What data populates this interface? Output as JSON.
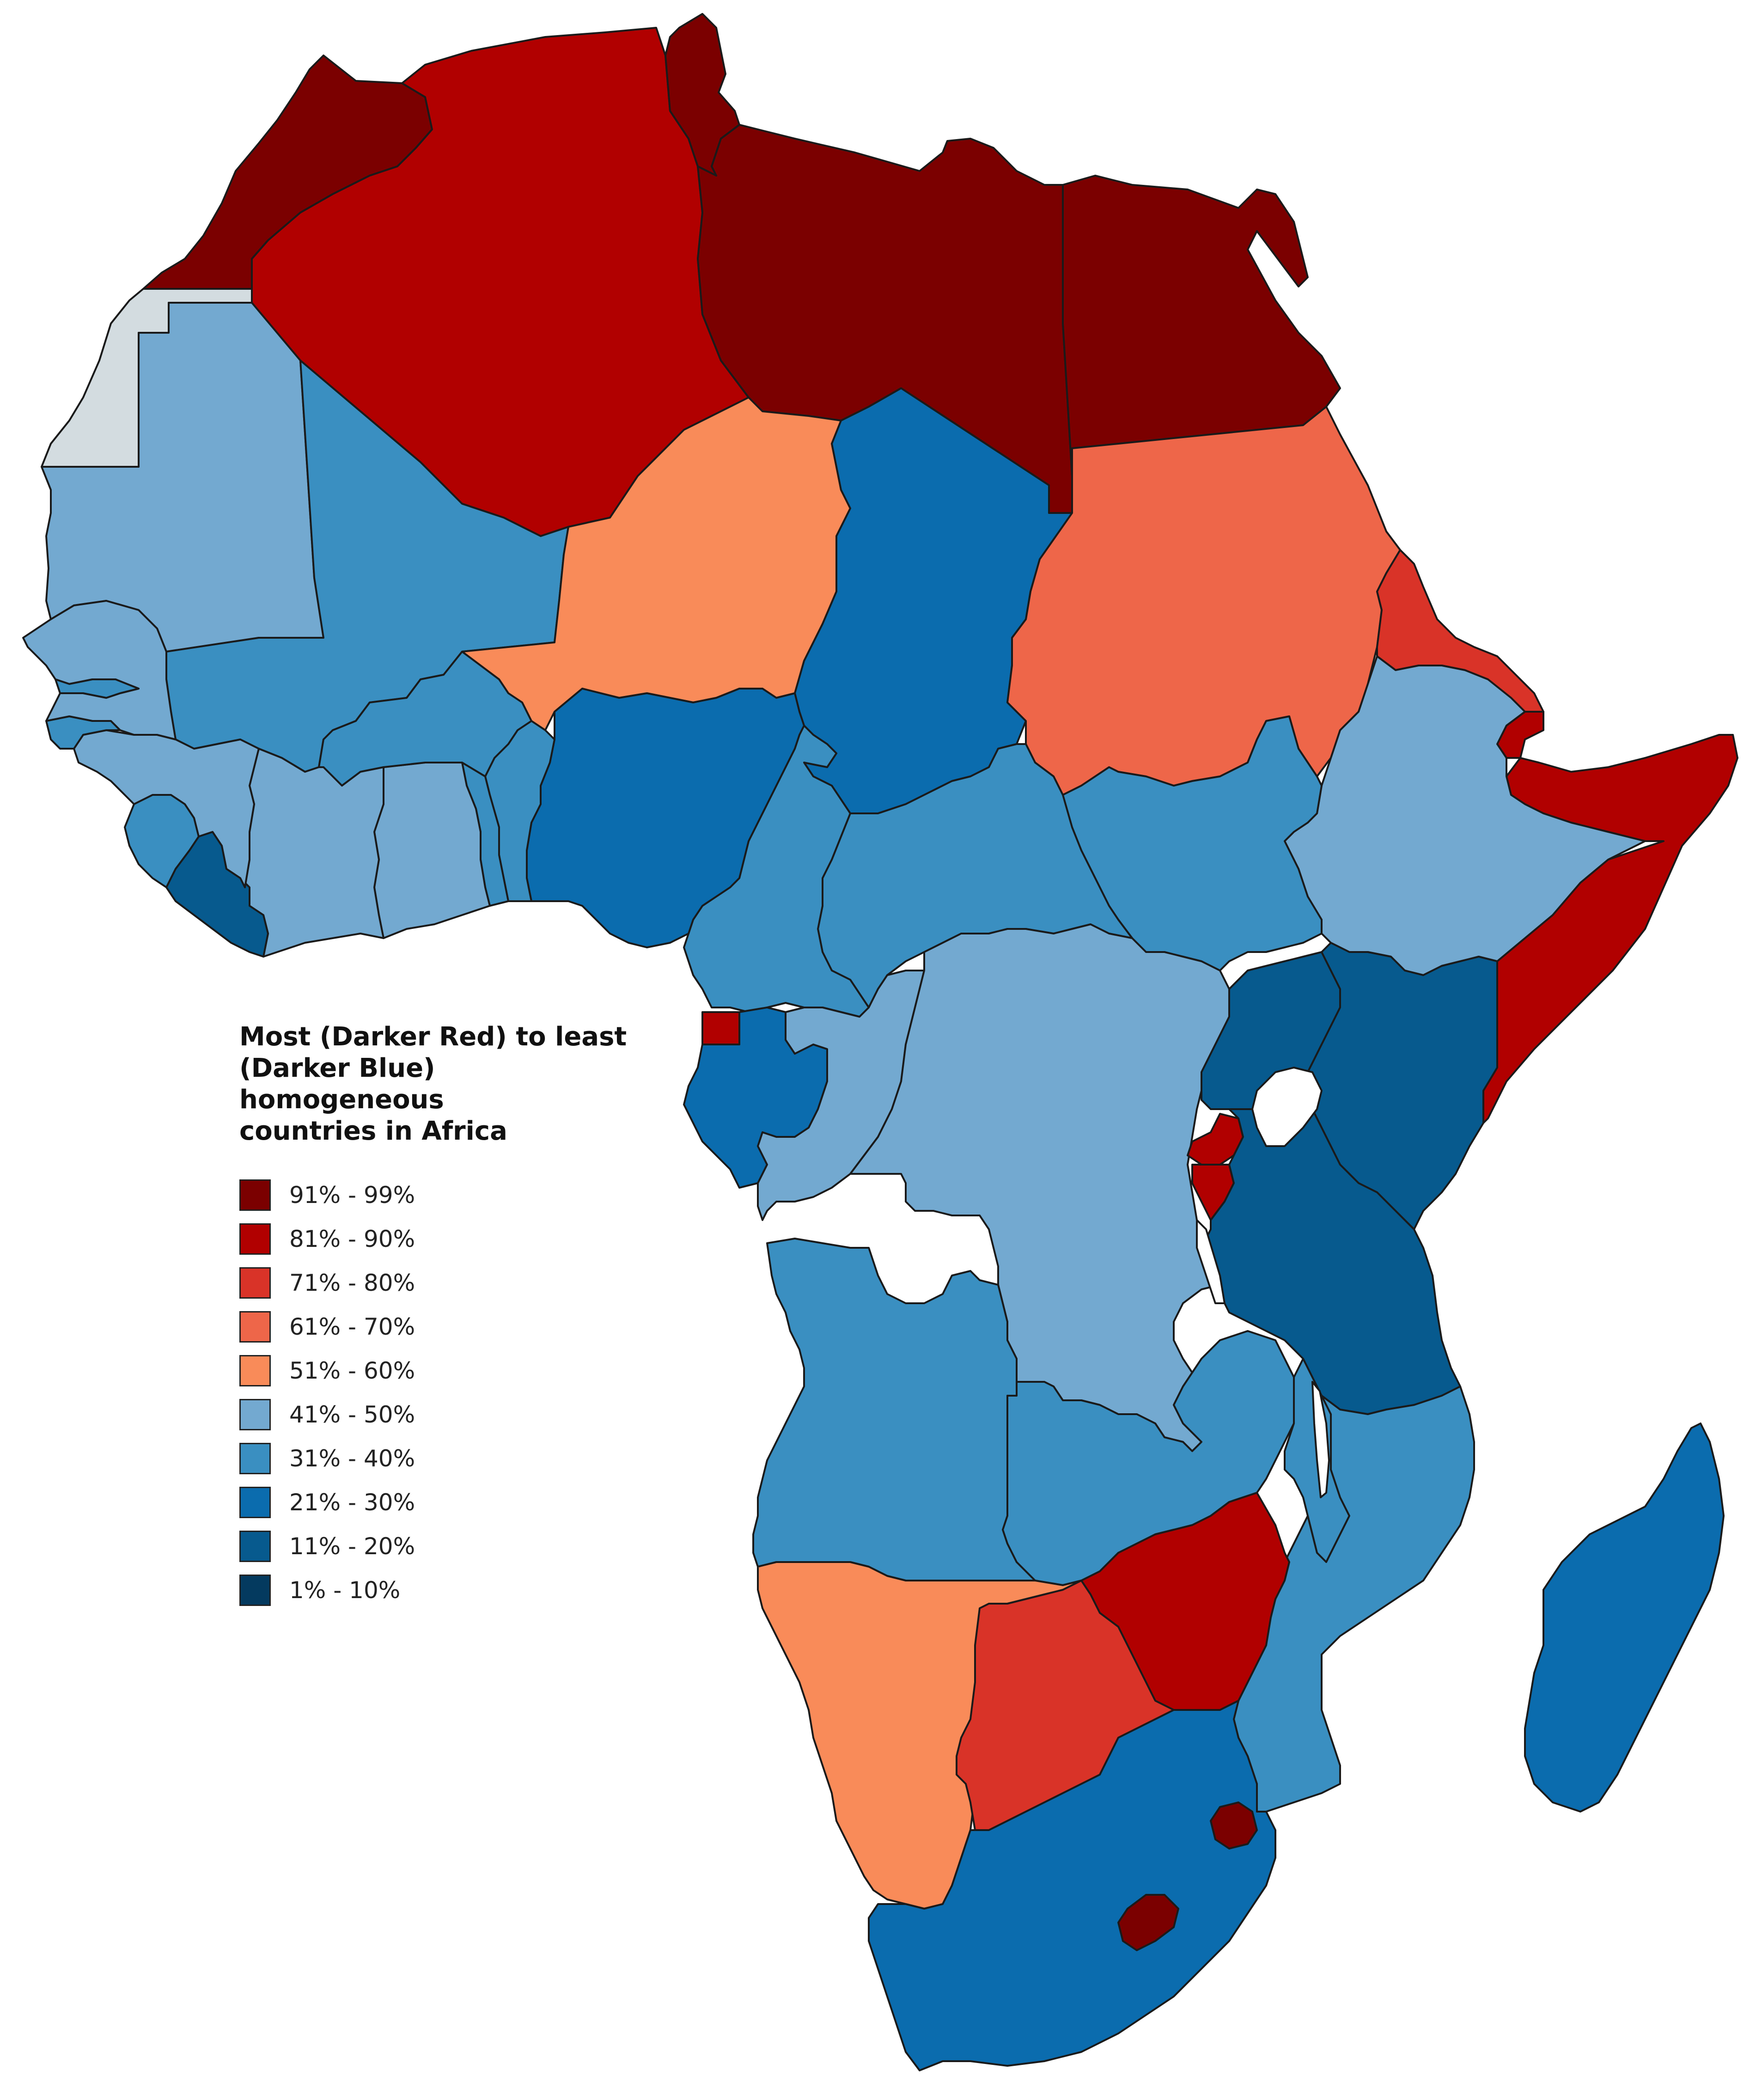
{
  "legend": {
    "title_line1": "Most (Darker Red) to least",
    "title_line2": "(Darker Blue) homogeneous",
    "title_line3": "countries in Africa",
    "items": [
      {
        "label": "91% - 99%",
        "color": "#7b0000"
      },
      {
        "label": "81% - 90%",
        "color": "#b10000"
      },
      {
        "label": "71% - 80%",
        "color": "#d93328"
      },
      {
        "label": "61% - 70%",
        "color": "#ee6649"
      },
      {
        "label": "51% - 60%",
        "color": "#f98b59"
      },
      {
        "label": "41% - 50%",
        "color": "#73a9d0"
      },
      {
        "label": "31% - 40%",
        "color": "#3a8fc1"
      },
      {
        "label": "21% - 30%",
        "color": "#0b6cae"
      },
      {
        "label": "11% - 20%",
        "color": "#075a8e"
      },
      {
        "label": "1% - 10%",
        "color": "#043a5f"
      }
    ]
  },
  "no_data_color": "#d3dce0",
  "regions": [
    {
      "id": "morocco",
      "class": "91% - 99%"
    },
    {
      "id": "algeria",
      "class": "81% - 90%"
    },
    {
      "id": "tunisia",
      "class": "91% - 99%"
    },
    {
      "id": "libya",
      "class": "91% - 99%"
    },
    {
      "id": "egypt",
      "class": "91% - 99%"
    },
    {
      "id": "western-sahara",
      "class": "none"
    },
    {
      "id": "mauritania",
      "class": "41% - 50%"
    },
    {
      "id": "mali",
      "class": "31% - 40%"
    },
    {
      "id": "niger",
      "class": "51% - 60%"
    },
    {
      "id": "chad",
      "class": "21% - 30%"
    },
    {
      "id": "sudan",
      "class": "61% - 70%"
    },
    {
      "id": "eritrea",
      "class": "71% - 80%"
    },
    {
      "id": "djibouti",
      "class": "81% - 90%"
    },
    {
      "id": "somalia",
      "class": "81% - 90%"
    },
    {
      "id": "ethiopia",
      "class": "41% - 50%"
    },
    {
      "id": "south-sudan",
      "class": "31% - 40%"
    },
    {
      "id": "central-african-republic",
      "class": "31% - 40%"
    },
    {
      "id": "cameroon",
      "class": "31% - 40%"
    },
    {
      "id": "nigeria",
      "class": "21% - 30%"
    },
    {
      "id": "benin",
      "class": "31% - 40%"
    },
    {
      "id": "togo",
      "class": "31% - 40%"
    },
    {
      "id": "ghana",
      "class": "41% - 50%"
    },
    {
      "id": "burkina-faso",
      "class": "31% - 40%"
    },
    {
      "id": "ivory-coast",
      "class": "41% - 50%"
    },
    {
      "id": "liberia",
      "class": "11% - 20%"
    },
    {
      "id": "sierra-leone",
      "class": "31% - 40%"
    },
    {
      "id": "guinea",
      "class": "41% - 50%"
    },
    {
      "id": "guinea-bissau",
      "class": "31% - 40%"
    },
    {
      "id": "senegal",
      "class": "41% - 50%"
    },
    {
      "id": "gambia",
      "class": "31% - 40%"
    },
    {
      "id": "equatorial-guinea",
      "class": "81% - 90%"
    },
    {
      "id": "gabon",
      "class": "21% - 30%"
    },
    {
      "id": "republic-of-congo",
      "class": "41% - 50%"
    },
    {
      "id": "dr-congo",
      "class": "41% - 50%"
    },
    {
      "id": "uganda",
      "class": "11% - 20%"
    },
    {
      "id": "kenya",
      "class": "11% - 20%"
    },
    {
      "id": "rwanda",
      "class": "81% - 90%"
    },
    {
      "id": "burundi",
      "class": "81% - 90%"
    },
    {
      "id": "tanzania",
      "class": "11% - 20%"
    },
    {
      "id": "angola",
      "class": "31% - 40%"
    },
    {
      "id": "zambia",
      "class": "31% - 40%"
    },
    {
      "id": "malawi",
      "class": "31% - 40%"
    },
    {
      "id": "mozambique",
      "class": "31% - 40%"
    },
    {
      "id": "zimbabwe",
      "class": "81% - 90%"
    },
    {
      "id": "namibia",
      "class": "51% - 60%"
    },
    {
      "id": "botswana",
      "class": "71% - 80%"
    },
    {
      "id": "south-africa",
      "class": "21% - 30%"
    },
    {
      "id": "eswatini",
      "class": "91% - 99%"
    },
    {
      "id": "lesotho",
      "class": "91% - 99%"
    },
    {
      "id": "madagascar",
      "class": "21% - 30%"
    }
  ]
}
